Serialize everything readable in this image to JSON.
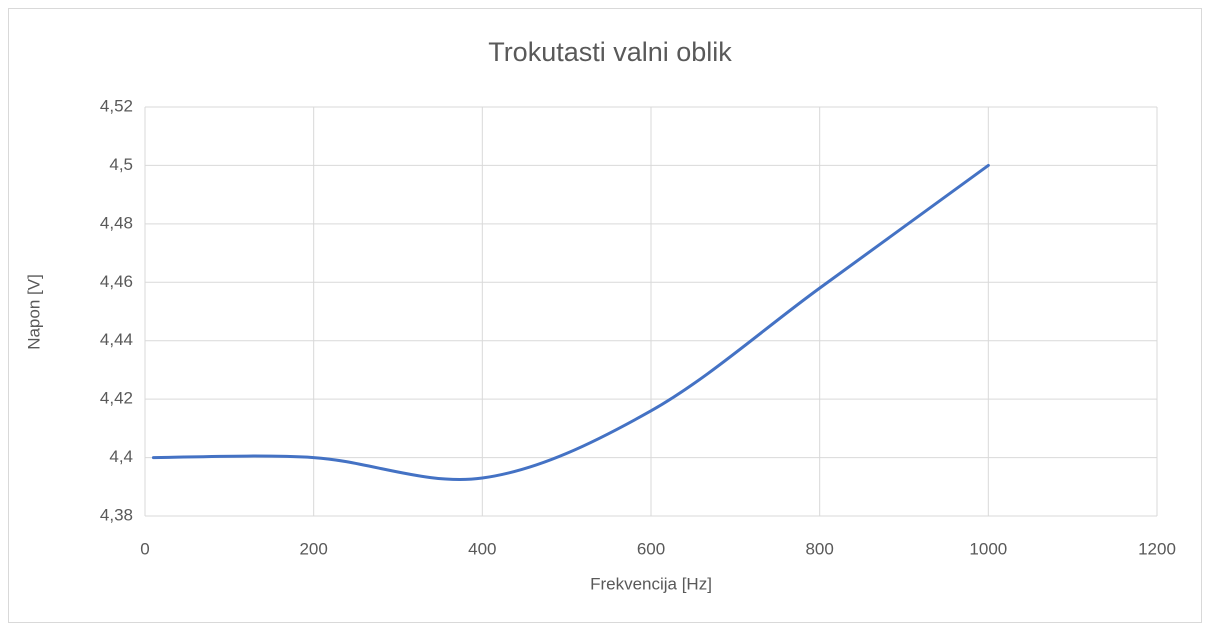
{
  "chart_data": {
    "type": "line",
    "title": "Trokutasti valni oblik",
    "x_label": "Frekvencija [Hz]",
    "y_label": "Napon [V]",
    "x": [
      10,
      200,
      400,
      600,
      800,
      1000
    ],
    "series": [
      {
        "name": "Napon",
        "color": "#4472c4",
        "values": [
          4.4,
          4.4,
          4.393,
          4.416,
          4.458,
          4.5
        ]
      }
    ],
    "xlim": [
      0,
      1200
    ],
    "xticks": [
      0,
      200,
      400,
      600,
      800,
      1000,
      1200
    ],
    "ylim": [
      4.38,
      4.52
    ],
    "yticks": [
      {
        "value": 4.38,
        "label": "4,38"
      },
      {
        "value": 4.4,
        "label": "4,4"
      },
      {
        "value": 4.42,
        "label": "4,42"
      },
      {
        "value": 4.44,
        "label": "4,44"
      },
      {
        "value": 4.46,
        "label": "4,46"
      },
      {
        "value": 4.48,
        "label": "4,48"
      },
      {
        "value": 4.5,
        "label": "4,5"
      },
      {
        "value": 4.52,
        "label": "4,52"
      }
    ],
    "grid": true,
    "smooth": true
  }
}
